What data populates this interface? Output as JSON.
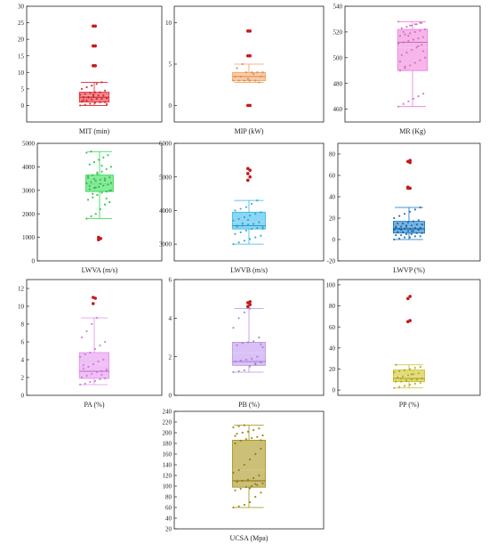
{
  "chart_data": [
    {
      "type": "box",
      "xlabel": "MIT (min)",
      "ylim": [
        -5,
        30
      ],
      "yticks": [
        0,
        5,
        10,
        15,
        20,
        25,
        30
      ],
      "color": "#e8202a",
      "stats": {
        "min": 0,
        "q1": 1,
        "median": 2.5,
        "mean": 3,
        "q3": 4,
        "max": 7
      },
      "outliers": [
        12,
        12,
        18,
        18,
        24,
        24
      ],
      "points": [
        0,
        0.2,
        0.5,
        0.8,
        1,
        1,
        1.2,
        1.5,
        1.8,
        2,
        2,
        2.2,
        2.5,
        2.5,
        2.8,
        3,
        3,
        3.2,
        3.5,
        3.8,
        4,
        4,
        4.5,
        5,
        5.5,
        6,
        6.5,
        7,
        0.4,
        1.6,
        2.4,
        3.3
      ]
    },
    {
      "type": "box",
      "xlabel": "MIP (kW)",
      "ylim": [
        -2,
        12
      ],
      "yticks": [
        0,
        5,
        10
      ],
      "color": "#f5a05a",
      "stats": {
        "min": 2.8,
        "q1": 3.0,
        "median": 3.5,
        "mean": 3.6,
        "q3": 4.0,
        "max": 5.0
      },
      "outliers": [
        0,
        0,
        6,
        6,
        9,
        9
      ],
      "points": [
        3,
        3,
        3,
        3,
        3,
        3.5,
        3.5,
        3.5,
        4,
        4,
        4,
        4,
        4.5,
        5,
        3.2,
        3.8,
        2.8
      ]
    },
    {
      "type": "box",
      "xlabel": "MR (Kg)",
      "ylim": [
        450,
        540
      ],
      "yticks": [
        460,
        480,
        500,
        520,
        540
      ],
      "color": "#f07ad8",
      "stats": {
        "min": 462,
        "q1": 490,
        "median": 512,
        "mean": 508,
        "q3": 522,
        "max": 528
      },
      "outliers": [],
      "points": [
        462,
        464,
        466,
        468,
        470,
        472,
        490,
        492,
        494,
        496,
        498,
        500,
        502,
        504,
        506,
        508,
        510,
        511,
        512,
        513,
        514,
        515,
        516,
        517,
        518,
        519,
        520,
        521,
        522,
        523,
        524,
        525,
        526,
        527,
        528,
        520,
        517,
        514,
        509,
        505,
        497,
        493,
        525,
        526,
        527
      ]
    },
    {
      "type": "box",
      "xlabel": "LWVA (m/s)",
      "ylim": [
        0,
        5000
      ],
      "yticks": [
        0,
        1000,
        2000,
        3000,
        4000,
        5000
      ],
      "color": "#27d84a",
      "stats": {
        "min": 1800,
        "q1": 2950,
        "median": 3250,
        "mean": 3250,
        "q3": 3650,
        "max": 4650
      },
      "outliers": [
        900,
        950,
        1000
      ],
      "points": [
        1800,
        1900,
        2000,
        2200,
        2400,
        2500,
        2600,
        2700,
        2800,
        2900,
        2950,
        3000,
        3050,
        3100,
        3150,
        3200,
        3250,
        3300,
        3350,
        3400,
        3450,
        3500,
        3550,
        3600,
        3650,
        3700,
        3800,
        3900,
        4000,
        4100,
        4200,
        4300,
        4400,
        4500,
        4600,
        4650,
        3120,
        3280,
        3420,
        2980,
        3530,
        2850,
        3760,
        4050,
        2650,
        3320,
        3180,
        3480
      ]
    },
    {
      "type": "box",
      "xlabel": "LWVB (m/s)",
      "ylim": [
        2500,
        6000
      ],
      "yticks": [
        3000,
        4000,
        5000,
        6000
      ],
      "color": "#2db5ea",
      "stats": {
        "min": 3000,
        "q1": 3450,
        "median": 3550,
        "mean": 3650,
        "q3": 3950,
        "max": 4300
      },
      "outliers": [
        4900,
        5000,
        5100,
        5200,
        5250
      ],
      "points": [
        3000,
        3050,
        3100,
        3150,
        3200,
        3250,
        3300,
        3350,
        3400,
        3450,
        3480,
        3500,
        3520,
        3550,
        3580,
        3600,
        3650,
        3700,
        3750,
        3800,
        3850,
        3900,
        3950,
        4000,
        4050,
        4100,
        4200,
        4300,
        3460,
        3540,
        3620,
        3720
      ]
    },
    {
      "type": "box",
      "xlabel": "LWVP (%)",
      "ylim": [
        -20,
        90
      ],
      "yticks": [
        -20,
        0,
        20,
        40,
        60,
        80
      ],
      "color": "#0a72c4",
      "stats": {
        "min": 0,
        "q1": 6,
        "median": 10,
        "mean": 12,
        "q3": 17,
        "max": 30
      },
      "outliers": [
        48,
        48,
        49,
        72,
        73,
        74
      ],
      "points": [
        0,
        1,
        2,
        2,
        3,
        3,
        4,
        4,
        5,
        5,
        6,
        6,
        7,
        7,
        8,
        8,
        9,
        9,
        10,
        10,
        10,
        11,
        11,
        12,
        12,
        13,
        13,
        14,
        14,
        15,
        15,
        16,
        17,
        18,
        20,
        22,
        24,
        26,
        28,
        30,
        11,
        9,
        12,
        8
      ]
    },
    {
      "type": "box",
      "xlabel": "PA (%)",
      "ylim": [
        0,
        13
      ],
      "yticks": [
        0,
        2,
        4,
        6,
        8,
        10,
        12
      ],
      "color": "#e48cf0",
      "stats": {
        "min": 1.2,
        "q1": 1.9,
        "median": 2.7,
        "mean": 3.5,
        "q3": 4.8,
        "max": 8.7
      },
      "outliers": [
        10.3,
        10.9,
        11.0
      ],
      "points": [
        1.2,
        1.3,
        1.5,
        1.6,
        1.8,
        1.9,
        2.0,
        2.2,
        2.4,
        2.6,
        2.7,
        2.8,
        3.0,
        3.2,
        3.5,
        3.8,
        4.0,
        4.3,
        4.6,
        4.8,
        5.2,
        5.6,
        6.0,
        6.5,
        7.2,
        8.0,
        8.7,
        2.3,
        2.9,
        3.4
      ]
    },
    {
      "type": "box",
      "xlabel": "PB (%)",
      "ylim": [
        0,
        6
      ],
      "yticks": [
        0,
        2,
        4,
        6
      ],
      "color": "#b98ef0",
      "stats": {
        "min": 1.2,
        "q1": 1.55,
        "median": 1.75,
        "mean": 2.2,
        "q3": 2.75,
        "max": 4.5
      },
      "outliers": [
        4.6,
        4.7,
        4.8,
        4.85
      ],
      "points": [
        1.2,
        1.25,
        1.3,
        1.5,
        1.6,
        1.7,
        1.75,
        1.8,
        1.85,
        1.9,
        2.0,
        2.5,
        2.6,
        2.7,
        2.75,
        2.8,
        3.0,
        3.5,
        4.0,
        4.3,
        4.5,
        1.65,
        2.65
      ]
    },
    {
      "type": "box",
      "xlabel": "PP (%)",
      "ylim": [
        -5,
        105
      ],
      "yticks": [
        0,
        20,
        40,
        60,
        80,
        100
      ],
      "color": "#c9bd16",
      "stats": {
        "min": 2,
        "q1": 8,
        "median": 11,
        "mean": 13,
        "q3": 19,
        "max": 24
      },
      "outliers": [
        65,
        66,
        87,
        89
      ],
      "points": [
        2,
        3,
        4,
        5,
        6,
        7,
        8,
        8,
        9,
        10,
        10,
        11,
        12,
        13,
        14,
        15,
        16,
        17,
        18,
        19,
        20,
        21,
        22,
        24,
        11,
        9,
        15
      ]
    },
    {
      "type": "box",
      "xlabel": "UCSA (Mpa)",
      "ylim": [
        20,
        240
      ],
      "yticks": [
        20,
        40,
        60,
        80,
        100,
        120,
        140,
        160,
        180,
        200,
        220,
        240
      ],
      "color": "#a38c0a",
      "stats": {
        "min": 60,
        "q1": 98,
        "median": 110,
        "mean": 130,
        "q3": 186,
        "max": 214
      },
      "outliers": [],
      "points": [
        60,
        62,
        65,
        70,
        80,
        88,
        92,
        95,
        98,
        100,
        102,
        105,
        108,
        110,
        112,
        115,
        120,
        125,
        130,
        140,
        150,
        160,
        170,
        180,
        185,
        188,
        190,
        192,
        195,
        198,
        200,
        202,
        205,
        208,
        210,
        212,
        214,
        96,
        104,
        186,
        194
      ]
    }
  ]
}
